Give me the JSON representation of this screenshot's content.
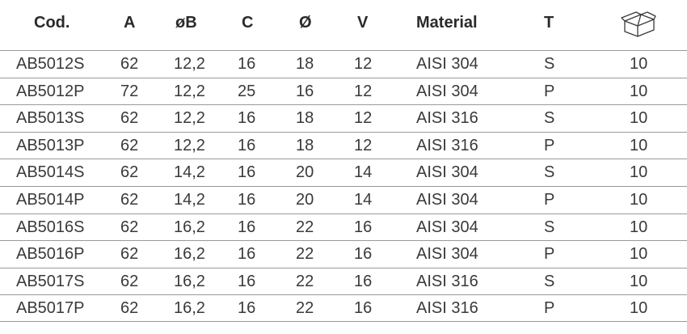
{
  "header": {
    "code": "Cod.",
    "a": "A",
    "b": "øB",
    "c": "C",
    "d": "Ø",
    "v": "V",
    "material": "Material",
    "t": "T",
    "qty_icon": "box-icon"
  },
  "rows": [
    {
      "code": "AB5012S",
      "a": "62",
      "b": "12,2",
      "c": "16",
      "d": "18",
      "v": "12",
      "material": "AISI 304",
      "t": "S",
      "qty": "10"
    },
    {
      "code": "AB5012P",
      "a": "72",
      "b": "12,2",
      "c": "25",
      "d": "16",
      "v": "12",
      "material": "AISI 304",
      "t": "P",
      "qty": "10"
    },
    {
      "code": "AB5013S",
      "a": "62",
      "b": "12,2",
      "c": "16",
      "d": "18",
      "v": "12",
      "material": "AISI 316",
      "t": "S",
      "qty": "10"
    },
    {
      "code": "AB5013P",
      "a": "62",
      "b": "12,2",
      "c": "16",
      "d": "18",
      "v": "12",
      "material": "AISI 316",
      "t": "P",
      "qty": "10"
    },
    {
      "code": "AB5014S",
      "a": "62",
      "b": "14,2",
      "c": "16",
      "d": "20",
      "v": "14",
      "material": "AISI 304",
      "t": "S",
      "qty": "10"
    },
    {
      "code": "AB5014P",
      "a": "62",
      "b": "14,2",
      "c": "16",
      "d": "20",
      "v": "14",
      "material": "AISI 304",
      "t": "P",
      "qty": "10"
    },
    {
      "code": "AB5016S",
      "a": "62",
      "b": "16,2",
      "c": "16",
      "d": "22",
      "v": "16",
      "material": "AISI 304",
      "t": "S",
      "qty": "10"
    },
    {
      "code": "AB5016P",
      "a": "62",
      "b": "16,2",
      "c": "16",
      "d": "22",
      "v": "16",
      "material": "AISI 304",
      "t": "P",
      "qty": "10"
    },
    {
      "code": "AB5017S",
      "a": "62",
      "b": "16,2",
      "c": "16",
      "d": "22",
      "v": "16",
      "material": "AISI 316",
      "t": "S",
      "qty": "10"
    },
    {
      "code": "AB5017P",
      "a": "62",
      "b": "16,2",
      "c": "16",
      "d": "22",
      "v": "16",
      "material": "AISI 316",
      "t": "P",
      "qty": "10"
    }
  ],
  "colors": {
    "text": "#2a2a2a",
    "rule": "#9a9a9a",
    "background": "#ffffff"
  }
}
